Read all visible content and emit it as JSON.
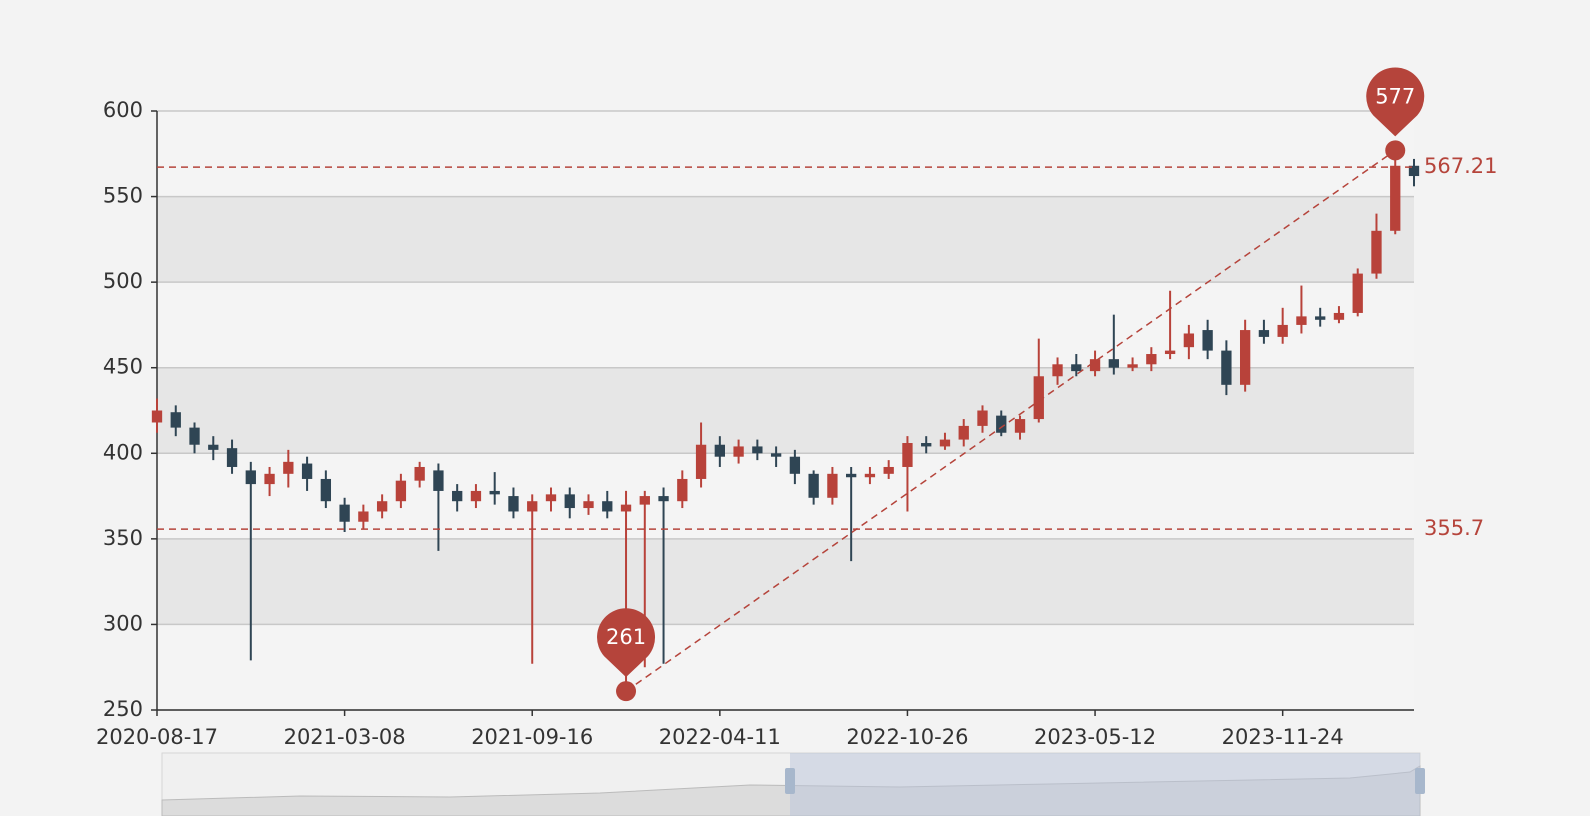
{
  "chart_data": {
    "type": "candlestick",
    "categories": [
      "2020-08-17",
      null,
      null,
      null,
      null,
      null,
      null,
      null,
      null,
      null,
      "2021-03-08",
      null,
      null,
      null,
      null,
      null,
      null,
      null,
      null,
      null,
      "2021-09-16",
      null,
      null,
      null,
      null,
      null,
      null,
      null,
      null,
      null,
      "2022-04-11",
      null,
      null,
      null,
      null,
      null,
      null,
      null,
      null,
      null,
      "2022-10-26",
      null,
      null,
      null,
      null,
      null,
      null,
      null,
      null,
      null,
      "2023-05-12",
      null,
      null,
      null,
      null,
      null,
      null,
      null,
      null,
      null,
      "2023-11-24",
      null,
      null,
      null,
      null,
      null,
      null,
      null
    ],
    "values": [
      [
        418,
        425,
        412,
        432
      ],
      [
        424,
        415,
        410,
        428
      ],
      [
        415,
        405,
        400,
        418
      ],
      [
        405,
        402,
        396,
        410
      ],
      [
        403,
        392,
        388,
        408
      ],
      [
        390,
        382,
        279,
        395
      ],
      [
        382,
        388,
        375,
        392
      ],
      [
        388,
        395,
        380,
        402
      ],
      [
        394,
        385,
        378,
        398
      ],
      [
        385,
        372,
        368,
        390
      ],
      [
        370,
        360,
        354,
        374
      ],
      [
        360,
        366,
        356,
        370
      ],
      [
        366,
        372,
        362,
        376
      ],
      [
        372,
        384,
        368,
        388
      ],
      [
        384,
        392,
        380,
        395
      ],
      [
        390,
        378,
        343,
        394
      ],
      [
        378,
        372,
        366,
        382
      ],
      [
        372,
        378,
        368,
        382
      ],
      [
        378,
        376,
        370,
        389
      ],
      [
        375,
        366,
        362,
        380
      ],
      [
        366,
        372,
        277,
        376
      ],
      [
        372,
        376,
        366,
        380
      ],
      [
        376,
        368,
        362,
        380
      ],
      [
        368,
        372,
        364,
        376
      ],
      [
        372,
        366,
        362,
        378
      ],
      [
        366,
        370,
        261,
        378
      ],
      [
        370,
        375,
        275,
        378
      ],
      [
        375,
        372,
        277,
        380
      ],
      [
        372,
        385,
        368,
        390
      ],
      [
        385,
        405,
        380,
        418
      ],
      [
        405,
        398,
        392,
        410
      ],
      [
        398,
        404,
        394,
        408
      ],
      [
        404,
        400,
        396,
        408
      ],
      [
        400,
        398,
        392,
        404
      ],
      [
        398,
        388,
        382,
        402
      ],
      [
        388,
        374,
        370,
        390
      ],
      [
        374,
        388,
        370,
        392
      ],
      [
        388,
        386,
        337,
        392
      ],
      [
        386,
        388,
        382,
        392
      ],
      [
        388,
        392,
        385,
        396
      ],
      [
        392,
        406,
        366,
        410
      ],
      [
        406,
        404,
        400,
        410
      ],
      [
        404,
        408,
        402,
        412
      ],
      [
        408,
        416,
        404,
        420
      ],
      [
        416,
        425,
        412,
        428
      ],
      [
        422,
        412,
        410,
        425
      ],
      [
        412,
        420,
        408,
        422
      ],
      [
        420,
        445,
        418,
        467
      ],
      [
        445,
        452,
        440,
        456
      ],
      [
        452,
        448,
        445,
        458
      ],
      [
        448,
        455,
        445,
        460
      ],
      [
        455,
        450,
        446,
        481
      ],
      [
        450,
        452,
        448,
        456
      ],
      [
        452,
        458,
        448,
        462
      ],
      [
        458,
        460,
        455,
        495
      ],
      [
        462,
        470,
        455,
        475
      ],
      [
        472,
        460,
        455,
        478
      ],
      [
        460,
        440,
        434,
        466
      ],
      [
        440,
        472,
        436,
        478
      ],
      [
        472,
        468,
        464,
        478
      ],
      [
        468,
        475,
        464,
        485
      ],
      [
        475,
        480,
        470,
        498
      ],
      [
        480,
        478,
        474,
        485
      ],
      [
        478,
        482,
        476,
        486
      ],
      [
        482,
        505,
        480,
        508
      ],
      [
        505,
        530,
        502,
        540
      ],
      [
        530,
        568,
        528,
        577
      ],
      [
        568,
        562,
        556,
        572
      ]
    ],
    "up_color": "#b8423a",
    "down_color": "#2f4554",
    "ylim": [
      250,
      600
    ],
    "yticks": [
      250,
      300,
      350,
      400,
      450,
      500,
      550,
      600
    ],
    "split_area": true,
    "mark_color": "#b5443b",
    "mark_lines": [
      {
        "value": 567.21
      },
      {
        "value": 355.7
      }
    ],
    "mark_points": [
      {
        "value": 261,
        "index": 25
      },
      {
        "value": 577,
        "index": 66
      }
    ]
  }
}
